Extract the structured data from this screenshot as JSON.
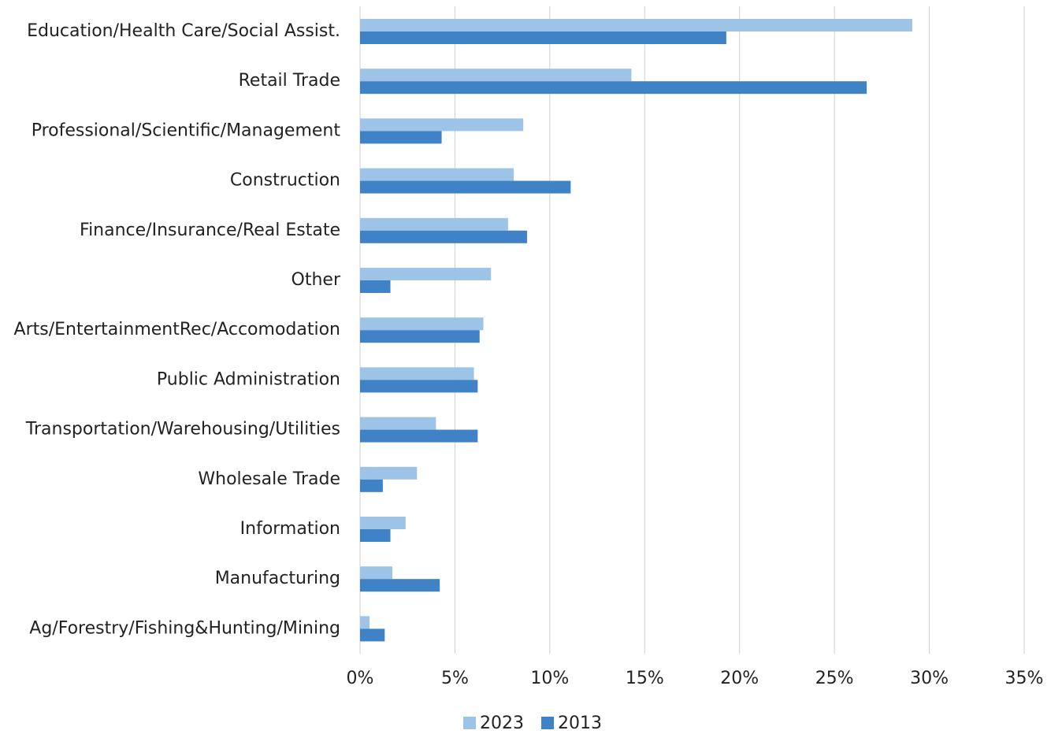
{
  "chart_data": {
    "type": "hbar",
    "categories": [
      "Education/Health Care/Social Assist.",
      "Retail Trade",
      "Professional/Scientific/Management",
      "Construction",
      "Finance/Insurance/Real Estate",
      "Other",
      "Arts/EntertainmentRec/Accomodation",
      "Public Administration",
      "Transportation/Warehousing/Utilities",
      "Wholesale Trade",
      "Information",
      "Manufacturing",
      "Ag/Forestry/Fishing&Hunting/Mining"
    ],
    "series": [
      {
        "name": "2023",
        "color": "#9dc3e6",
        "values": [
          29.1,
          14.3,
          8.6,
          8.1,
          7.8,
          6.9,
          6.5,
          6.0,
          4.0,
          3.0,
          2.4,
          1.7,
          0.5
        ]
      },
      {
        "name": "2013",
        "color": "#3f82c6",
        "values": [
          19.3,
          26.7,
          4.3,
          11.1,
          8.8,
          1.6,
          6.3,
          6.2,
          6.2,
          1.2,
          1.6,
          4.2,
          1.3
        ]
      }
    ],
    "xlim": [
      0,
      35
    ],
    "xticks": [
      {
        "value": 0,
        "label": "0%"
      },
      {
        "value": 5,
        "label": "5%"
      },
      {
        "value": 10,
        "label": "10%"
      },
      {
        "value": 15,
        "label": "15%"
      },
      {
        "value": 20,
        "label": "20%"
      },
      {
        "value": 25,
        "label": "25%"
      },
      {
        "value": 30,
        "label": "30%"
      },
      {
        "value": 35,
        "label": "35%"
      }
    ],
    "grid": true,
    "legend": "bottom"
  }
}
